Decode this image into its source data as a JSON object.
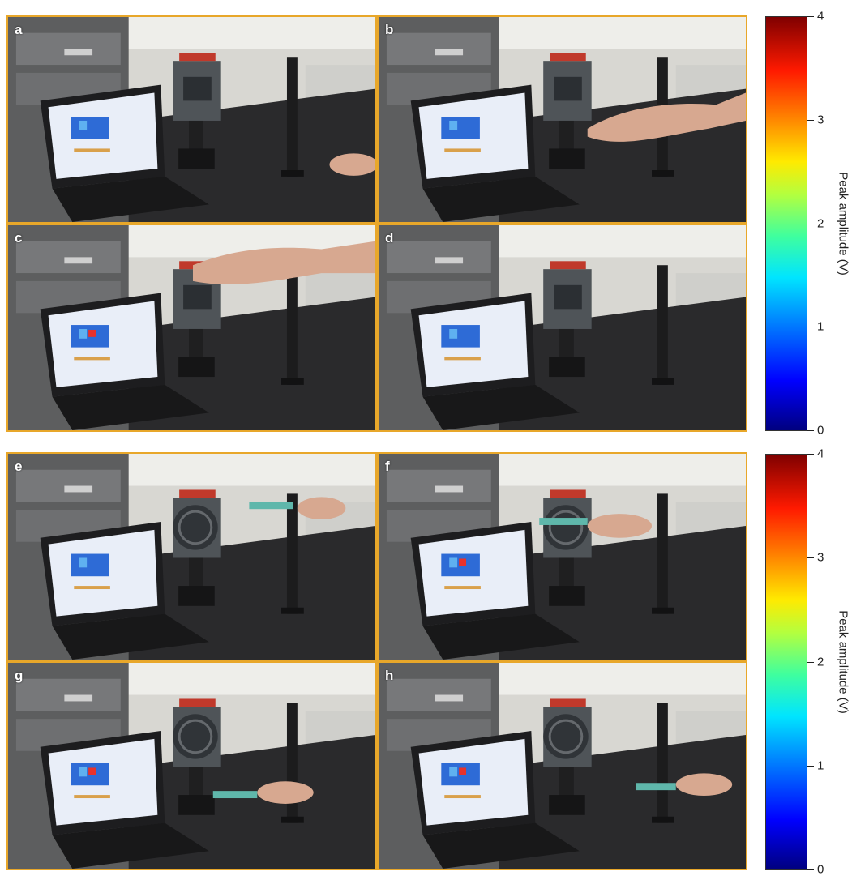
{
  "panels_top": [
    {
      "label": "a",
      "scene": "hand-low"
    },
    {
      "label": "b",
      "scene": "hand-mid"
    },
    {
      "label": "c",
      "scene": "hand-high"
    },
    {
      "label": "d",
      "scene": "none"
    }
  ],
  "panels_bottom": [
    {
      "label": "e",
      "scene": "iron-far"
    },
    {
      "label": "f",
      "scene": "iron-top"
    },
    {
      "label": "g",
      "scene": "iron-center"
    },
    {
      "label": "h",
      "scene": "iron-right"
    }
  ],
  "colorbar_top": {
    "title": "Peak amplitude (V)",
    "ticks": [
      "0",
      "1",
      "2",
      "3",
      "4"
    ],
    "min": 0,
    "max": 4
  },
  "colorbar_bottom": {
    "title": "Peak amplitude (V)",
    "ticks": [
      "0",
      "1",
      "2",
      "3",
      "4"
    ],
    "min": 0,
    "max": 4
  },
  "colors": {
    "frame": "#e8a72a",
    "table": "#2b2b2d",
    "wall": "#d9d8d3",
    "screen": "#e8eef8"
  }
}
